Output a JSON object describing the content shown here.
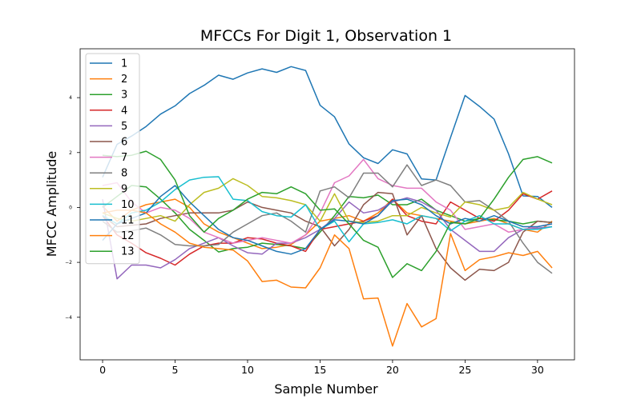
{
  "chart_data": {
    "type": "line",
    "title": "MFCCs For Digit 1, Observation 1",
    "xlabel": "Sample Number",
    "ylabel": "MFCC Amplitude",
    "xlim": [
      -1.55,
      32.55
    ],
    "ylim": [
      -5.55,
      5.78
    ],
    "xticks": [
      0,
      5,
      10,
      15,
      20,
      25,
      30
    ],
    "yticks": [
      -4,
      -2,
      0,
      2,
      4
    ],
    "grid": false,
    "legend_position": "upper-left",
    "x": [
      0,
      1,
      2,
      3,
      4,
      5,
      6,
      7,
      8,
      9,
      10,
      11,
      12,
      13,
      14,
      15,
      16,
      17,
      18,
      19,
      20,
      21,
      22,
      23,
      24,
      25,
      26,
      27,
      28,
      29,
      30,
      31
    ],
    "series": [
      {
        "name": "1",
        "color": "#1f77b4",
        "values": [
          1.1,
          2.3,
          2.6,
          2.95,
          3.4,
          3.7,
          4.15,
          4.45,
          4.82,
          4.67,
          4.9,
          5.05,
          4.92,
          5.13,
          4.99,
          3.72,
          3.3,
          2.31,
          1.81,
          1.6,
          2.1,
          1.95,
          1.04,
          1.0,
          2.55,
          4.08,
          3.68,
          3.22,
          1.95,
          0.42,
          0.4,
          0.0
        ]
      },
      {
        "name": "2",
        "color": "#ff7f0e",
        "values": [
          0.05,
          -0.5,
          -0.1,
          0.1,
          0.2,
          0.3,
          0.0,
          -0.6,
          -0.9,
          -1.1,
          -1.3,
          -1.5,
          -1.45,
          -1.35,
          -1.0,
          -0.5,
          -0.4,
          -0.3,
          -0.5,
          -0.2,
          0.3,
          -0.2,
          -0.3,
          -0.4,
          -0.5,
          -0.6,
          -0.5,
          -0.4,
          -0.6,
          -0.8,
          -0.9,
          -0.5
        ]
      },
      {
        "name": "3",
        "color": "#2ca02c",
        "values": [
          0.0,
          0.4,
          0.8,
          0.75,
          0.3,
          -0.2,
          -0.8,
          -1.2,
          -1.62,
          -1.5,
          -1.45,
          -1.3,
          -1.35,
          -1.4,
          -1.5,
          -0.9,
          -0.3,
          0.4,
          0.35,
          0.45,
          0.1,
          0.1,
          0.3,
          -0.1,
          -0.3,
          -0.5,
          -0.4,
          -0.45,
          -0.5,
          -0.6,
          -0.5,
          -0.55
        ]
      },
      {
        "name": "4",
        "color": "#d62728",
        "values": [
          -0.3,
          -1.0,
          -1.3,
          -1.65,
          -1.85,
          -2.1,
          -1.7,
          -1.4,
          -1.3,
          -1.3,
          -1.1,
          -1.15,
          -1.3,
          -1.4,
          -1.6,
          -0.8,
          -0.7,
          -0.6,
          -0.5,
          -0.3,
          0.3,
          -0.3,
          -0.5,
          -0.6,
          0.2,
          -0.1,
          -0.4,
          -0.5,
          -0.1,
          0.5,
          0.3,
          0.6
        ]
      },
      {
        "name": "5",
        "color": "#9467bd",
        "values": [
          0.3,
          -2.6,
          -2.1,
          -2.1,
          -2.2,
          -1.9,
          -1.5,
          -1.3,
          -1.1,
          -1.4,
          -1.65,
          -1.7,
          -1.3,
          -1.3,
          -1.1,
          -0.8,
          -0.4,
          0.2,
          -0.2,
          -0.1,
          0.2,
          0.35,
          0.2,
          -0.1,
          -0.8,
          -1.2,
          -1.6,
          -1.6,
          -1.1,
          -0.8,
          -0.75,
          -0.7
        ]
      },
      {
        "name": "6",
        "color": "#8c564b",
        "values": [
          -0.3,
          -0.7,
          -0.65,
          -0.6,
          -0.4,
          -0.3,
          -0.2,
          -0.2,
          -0.2,
          -0.1,
          0.2,
          0.0,
          -0.1,
          -0.2,
          -0.5,
          -0.7,
          -1.4,
          -0.8,
          0.1,
          0.55,
          0.5,
          -1.0,
          -0.3,
          -1.5,
          -2.2,
          -2.65,
          -2.25,
          -2.3,
          -2.0,
          -0.9,
          -0.5,
          -0.55
        ]
      },
      {
        "name": "7",
        "color": "#e377c2",
        "values": [
          0.8,
          0.9,
          0.2,
          -0.2,
          0.0,
          -0.1,
          -0.4,
          -0.9,
          -1.1,
          -1.3,
          -1.2,
          -1.1,
          -1.2,
          -1.3,
          -1.0,
          -0.2,
          0.9,
          1.15,
          1.75,
          1.05,
          0.8,
          0.7,
          0.7,
          0.2,
          -0.1,
          -0.8,
          -0.7,
          -0.6,
          -0.9,
          -0.8,
          -0.7,
          -0.6
        ]
      },
      {
        "name": "8",
        "color": "#7f7f7f",
        "values": [
          -0.5,
          -0.9,
          -0.85,
          -0.75,
          -1.0,
          -1.35,
          -1.4,
          -1.4,
          -1.35,
          -0.9,
          -0.6,
          -0.3,
          -0.2,
          -0.5,
          -0.9,
          0.6,
          0.75,
          0.35,
          1.25,
          1.25,
          0.75,
          1.55,
          0.8,
          1.0,
          0.8,
          0.2,
          0.25,
          -0.1,
          -0.5,
          -1.3,
          -2.0,
          -2.4
        ]
      },
      {
        "name": "9",
        "color": "#bcbd22",
        "values": [
          -0.2,
          -0.4,
          -0.5,
          -0.4,
          -0.3,
          -0.5,
          0.1,
          0.55,
          0.7,
          1.05,
          0.8,
          0.4,
          0.35,
          0.25,
          0.1,
          -0.5,
          0.5,
          -0.5,
          -0.55,
          -0.5,
          -0.3,
          -0.3,
          0.0,
          -0.2,
          -0.35,
          0.2,
          0.1,
          -0.1,
          0.0,
          0.55,
          0.3,
          0.1
        ]
      },
      {
        "name": "10",
        "color": "#17becf",
        "values": [
          -0.3,
          -0.6,
          -0.2,
          -0.1,
          0.2,
          0.65,
          1.0,
          1.1,
          1.12,
          0.3,
          0.25,
          -0.15,
          -0.3,
          -0.35,
          0.1,
          -0.8,
          -0.5,
          -1.25,
          -0.6,
          -0.55,
          -0.45,
          -0.6,
          -0.3,
          -0.4,
          -0.85,
          -0.5,
          -0.3,
          -0.6,
          -0.6,
          -0.8,
          -0.8,
          -0.7
        ]
      },
      {
        "name": "11",
        "color": "#1f77b4",
        "values": [
          -1.2,
          -0.6,
          -0.4,
          -0.2,
          0.4,
          0.8,
          0.2,
          -0.3,
          -0.8,
          -1.1,
          -1.2,
          -1.4,
          -1.6,
          -1.7,
          -1.5,
          -0.8,
          -0.45,
          -0.5,
          -0.6,
          -0.3,
          0.25,
          0.3,
          0.1,
          -0.3,
          -0.6,
          -0.4,
          -0.5,
          -0.3,
          -0.5,
          -0.7,
          -0.7,
          -0.6
        ]
      },
      {
        "name": "12",
        "color": "#ff7f0e",
        "values": [
          -0.2,
          -0.1,
          -0.1,
          -0.2,
          -0.6,
          -0.9,
          -1.3,
          -1.45,
          -1.5,
          -1.55,
          -1.95,
          -2.7,
          -2.65,
          -2.9,
          -2.93,
          -2.2,
          -1.0,
          -1.5,
          -3.33,
          -3.3,
          -5.05,
          -3.5,
          -4.35,
          -4.05,
          -0.95,
          -2.3,
          -1.9,
          -1.8,
          -1.65,
          -1.75,
          -1.6,
          -2.2
        ]
      },
      {
        "name": "13",
        "color": "#2ca02c",
        "values": [
          1.9,
          1.85,
          1.9,
          2.05,
          1.75,
          1.0,
          -0.3,
          -0.9,
          -0.4,
          -0.1,
          0.3,
          0.55,
          0.5,
          0.75,
          0.5,
          -0.1,
          -0.05,
          -0.6,
          -1.2,
          -1.45,
          -2.55,
          -2.05,
          -2.3,
          -1.6,
          -0.55,
          -0.6,
          -0.4,
          0.3,
          1.1,
          1.75,
          1.85,
          1.62
        ]
      }
    ]
  }
}
